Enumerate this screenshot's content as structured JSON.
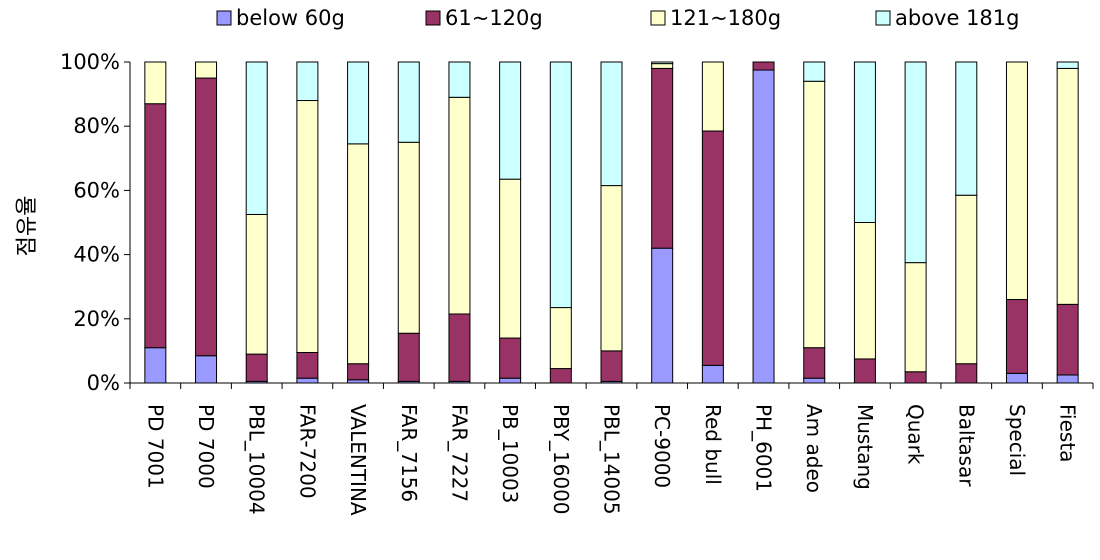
{
  "chart_data": {
    "type": "bar",
    "stacked": "percent",
    "ylabel": "점유율",
    "ylim": [
      0,
      100
    ],
    "yticks": [
      "0%",
      "20%",
      "40%",
      "60%",
      "80%",
      "100%"
    ],
    "grid": false,
    "legend_position": "top",
    "categories": [
      "PD 7001",
      "PD 7000",
      "PBL_10004",
      "FAR-7200",
      "VALENTINA",
      "FAR_7156",
      "FAR_7227",
      "PB_10003",
      "PBY_16000",
      "PBL_14005",
      "PC-9000",
      "Red bull",
      "PH_6001",
      "Am adeo",
      "Mustang",
      "Quark",
      "Baltasar",
      "Special",
      "Fiesta"
    ],
    "series": [
      {
        "name": "below 60g",
        "color": "#9999ff",
        "values": [
          11,
          8.5,
          0.5,
          1.5,
          1,
          0.5,
          0.5,
          1.5,
          0,
          0.5,
          42,
          5.5,
          97.5,
          1.5,
          0,
          0,
          0,
          3,
          2.5
        ]
      },
      {
        "name": "61~120g",
        "color": "#993366",
        "values": [
          76,
          86.5,
          8.5,
          8,
          5,
          15,
          21,
          12.5,
          4.5,
          9.5,
          56,
          73,
          2.5,
          9.5,
          7.5,
          3.5,
          6,
          23,
          22
        ]
      },
      {
        "name": "121~180g",
        "color": "#ffffcc",
        "values": [
          13,
          5,
          43.5,
          78.5,
          68.5,
          59.5,
          67.5,
          49.5,
          19,
          51.5,
          1.5,
          21.5,
          0,
          83,
          42.5,
          34,
          52.5,
          74,
          73.5
        ]
      },
      {
        "name": "above 181g",
        "color": "#ccffff",
        "values": [
          0,
          0,
          47.5,
          12,
          25.5,
          25,
          11,
          36.5,
          76.5,
          38.5,
          0.5,
          0,
          0,
          6,
          50,
          62.5,
          41.5,
          0,
          2
        ]
      }
    ]
  }
}
